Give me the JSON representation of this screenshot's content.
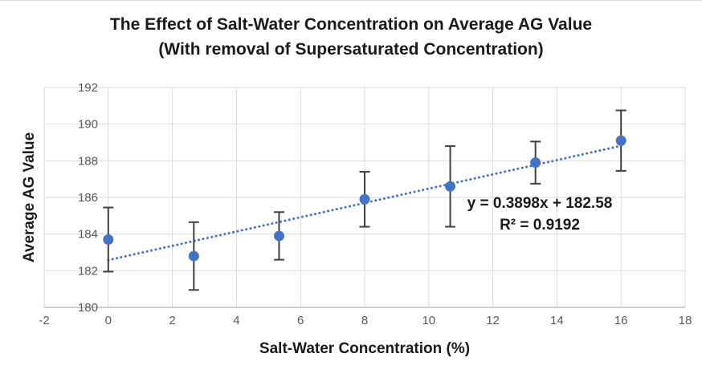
{
  "chart_data": {
    "type": "scatter",
    "title_line1": "The Effect of Salt-Water Concentration on Average AG Value",
    "title_line2": "(With removal of Supersaturated Concentration)",
    "xlabel": "Salt-Water Concentration (%)",
    "ylabel": "Average AG Value",
    "xlim": [
      -2,
      18
    ],
    "ylim": [
      180,
      192
    ],
    "x_ticks": [
      -2,
      0,
      2,
      4,
      6,
      8,
      10,
      12,
      14,
      16,
      18
    ],
    "y_ticks": [
      180,
      182,
      184,
      186,
      188,
      190,
      192
    ],
    "grid": true,
    "legend": "none",
    "series": [
      {
        "name": "Average AG Value",
        "x": [
          0,
          2.67,
          5.33,
          8,
          10.67,
          13.33,
          16
        ],
        "y": [
          183.7,
          182.8,
          183.9,
          185.9,
          186.6,
          187.9,
          189.1
        ],
        "y_error": [
          1.75,
          1.85,
          1.3,
          1.5,
          2.2,
          1.15,
          1.65
        ],
        "marker": "circle",
        "marker_color": "#4472C4",
        "error_bar_color": "#404040"
      }
    ],
    "trendline": {
      "equation": "y = 0.3898x + 182.58",
      "r_squared_label": "R² = 0.9192",
      "slope": 0.3898,
      "intercept": 182.58,
      "x_start": 0,
      "x_end": 16,
      "style": "dotted",
      "color": "#4472C4"
    },
    "colors": {
      "gridline": "#D9D9D9",
      "axis_line": "#BFBFBF",
      "tick_label": "#595959",
      "text": "#1a1a1a",
      "background": "#ffffff"
    }
  }
}
